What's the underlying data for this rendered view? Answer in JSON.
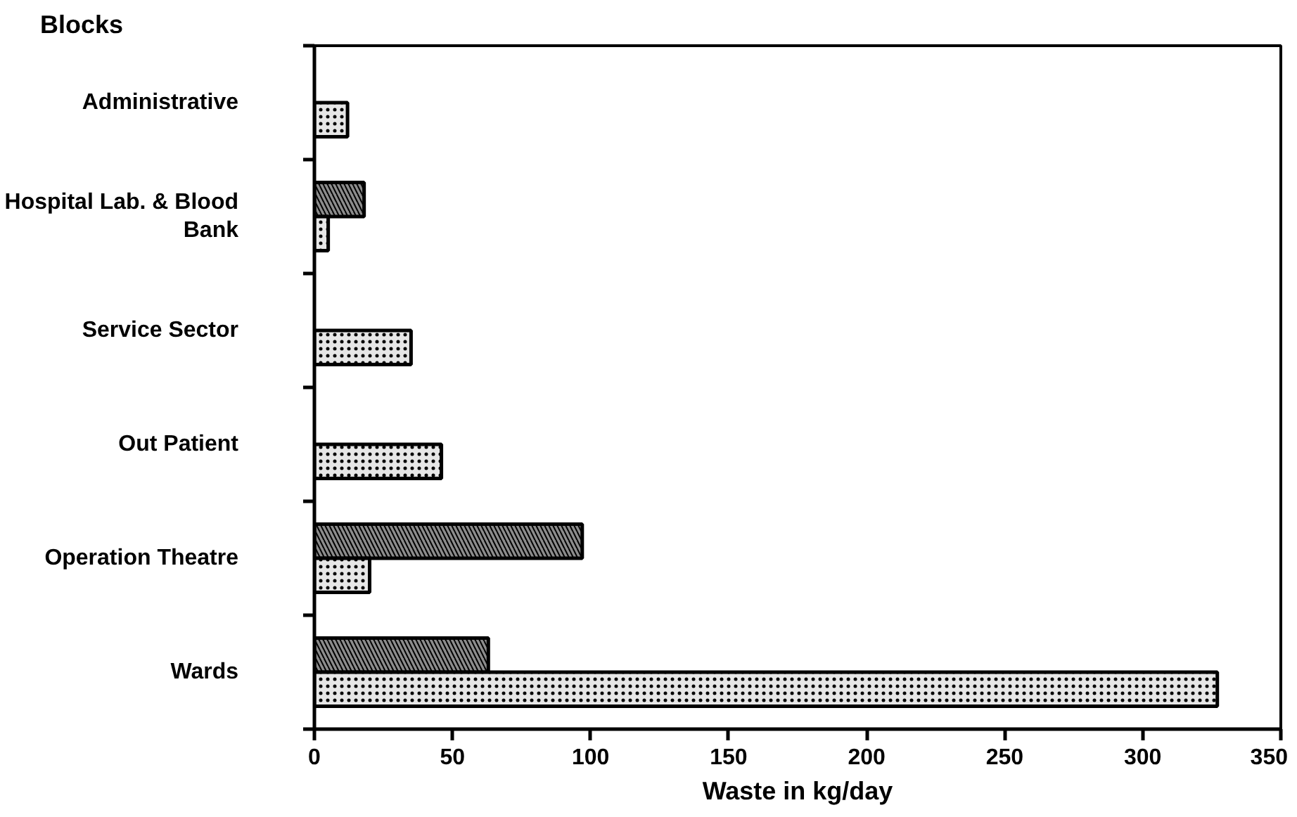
{
  "chart_data": {
    "type": "bar",
    "orientation": "horizontal",
    "xlabel": "Waste in kg/day",
    "ylabel": "Blocks",
    "categories": [
      "Administrative",
      "Hospital Lab. & Blood Bank",
      "Service Sector",
      "Out Patient",
      "Operation Theatre",
      "Wards"
    ],
    "series": [
      {
        "color": "#8c8c8c",
        "values": [
          null,
          18,
          null,
          null,
          97,
          63
        ]
      },
      {
        "color": "#e6e6e6",
        "values": [
          12,
          5,
          35,
          46,
          20,
          327
        ]
      }
    ],
    "xlim": [
      0,
      350
    ],
    "xticks": [
      0,
      50,
      100,
      150,
      200,
      250,
      300,
      350
    ],
    "grid": false
  }
}
